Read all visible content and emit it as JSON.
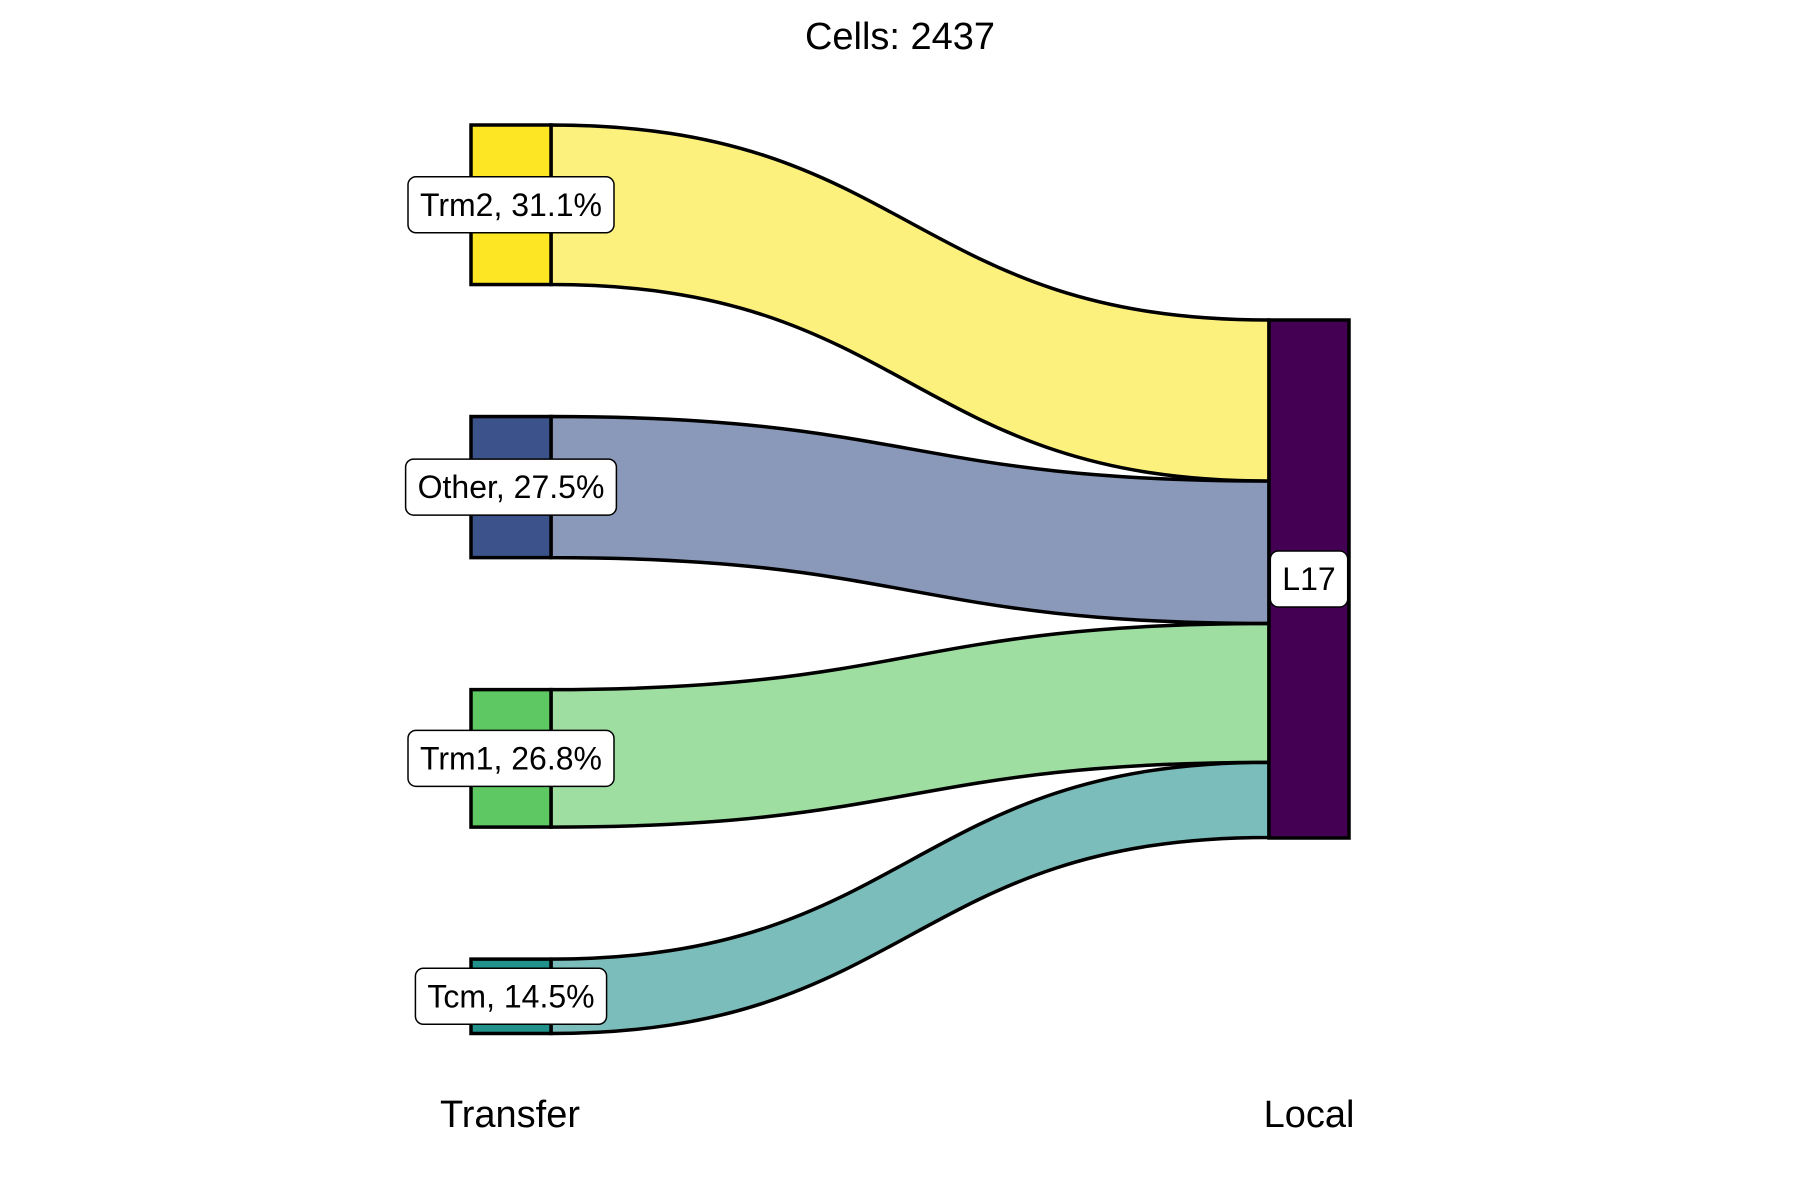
{
  "chart_data": {
    "type": "sankey",
    "title": "Cells:  2437",
    "axes": [
      "Transfer",
      "Local"
    ],
    "total_cells": 2437,
    "nodes": {
      "left": [
        {
          "name": "Trm2",
          "percent": 31.1,
          "label": "Trm2, 31.1%",
          "color": "#fde725"
        },
        {
          "name": "Other",
          "percent": 27.5,
          "label": "Other, 27.5%",
          "color": "#3b528b"
        },
        {
          "name": "Trm1",
          "percent": 26.8,
          "label": "Trm1, 26.8%",
          "color": "#5ec962"
        },
        {
          "name": "Tcm",
          "percent": 14.5,
          "label": "Tcm, 14.5%",
          "color": "#21918c"
        }
      ],
      "right": [
        {
          "name": "L17",
          "percent": 100.0,
          "label": "L17",
          "color": "#440154"
        }
      ]
    },
    "flows": [
      {
        "source": "Trm2",
        "target": "L17",
        "percent": 31.1,
        "color": "#fdf17e"
      },
      {
        "source": "Other",
        "target": "L17",
        "percent": 27.5,
        "color": "#8a99b9"
      },
      {
        "source": "Trm1",
        "target": "L17",
        "percent": 26.8,
        "color": "#9edfa1"
      },
      {
        "source": "Tcm",
        "target": "L17",
        "percent": 14.5,
        "color": "#7bbdbb"
      }
    ]
  }
}
